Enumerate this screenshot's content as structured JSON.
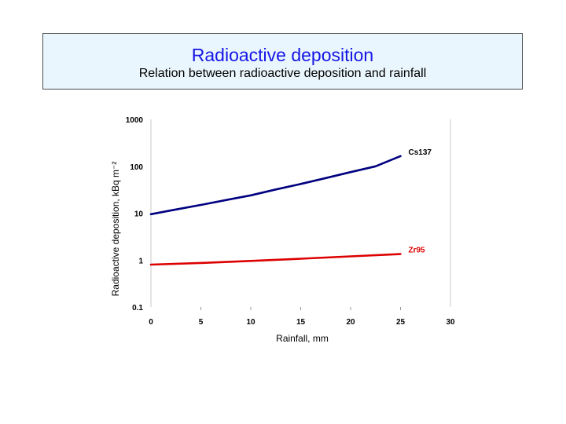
{
  "header": {
    "title": "Radioactive deposition",
    "subtitle": "Relation between radioactive deposition and rainfall"
  },
  "chart_data": {
    "type": "line",
    "title": "",
    "xlabel": "Rainfall, mm",
    "ylabel": "Radioactive deposition, kBq m⁻²",
    "xlim": [
      0,
      30
    ],
    "ylim": [
      0.1,
      1000
    ],
    "yscale": "log",
    "x_ticks": [
      "0",
      "5",
      "10",
      "15",
      "20",
      "25",
      "30"
    ],
    "y_ticks": [
      "0.1",
      "1",
      "10",
      "100",
      "1000"
    ],
    "grid": false,
    "series": [
      {
        "name": "Cs137",
        "color": "#000080",
        "x": [
          0,
          2.5,
          5,
          7.5,
          10,
          12.5,
          15,
          17.5,
          20,
          22.5,
          25
        ],
        "y": [
          9.5,
          12,
          15,
          19,
          24,
          32,
          42,
          56,
          75,
          100,
          165
        ]
      },
      {
        "name": "Zr95",
        "color": "#dd0000",
        "x": [
          0,
          5,
          10,
          15,
          20,
          25
        ],
        "y": [
          0.8,
          0.87,
          0.96,
          1.07,
          1.2,
          1.35
        ]
      }
    ]
  }
}
